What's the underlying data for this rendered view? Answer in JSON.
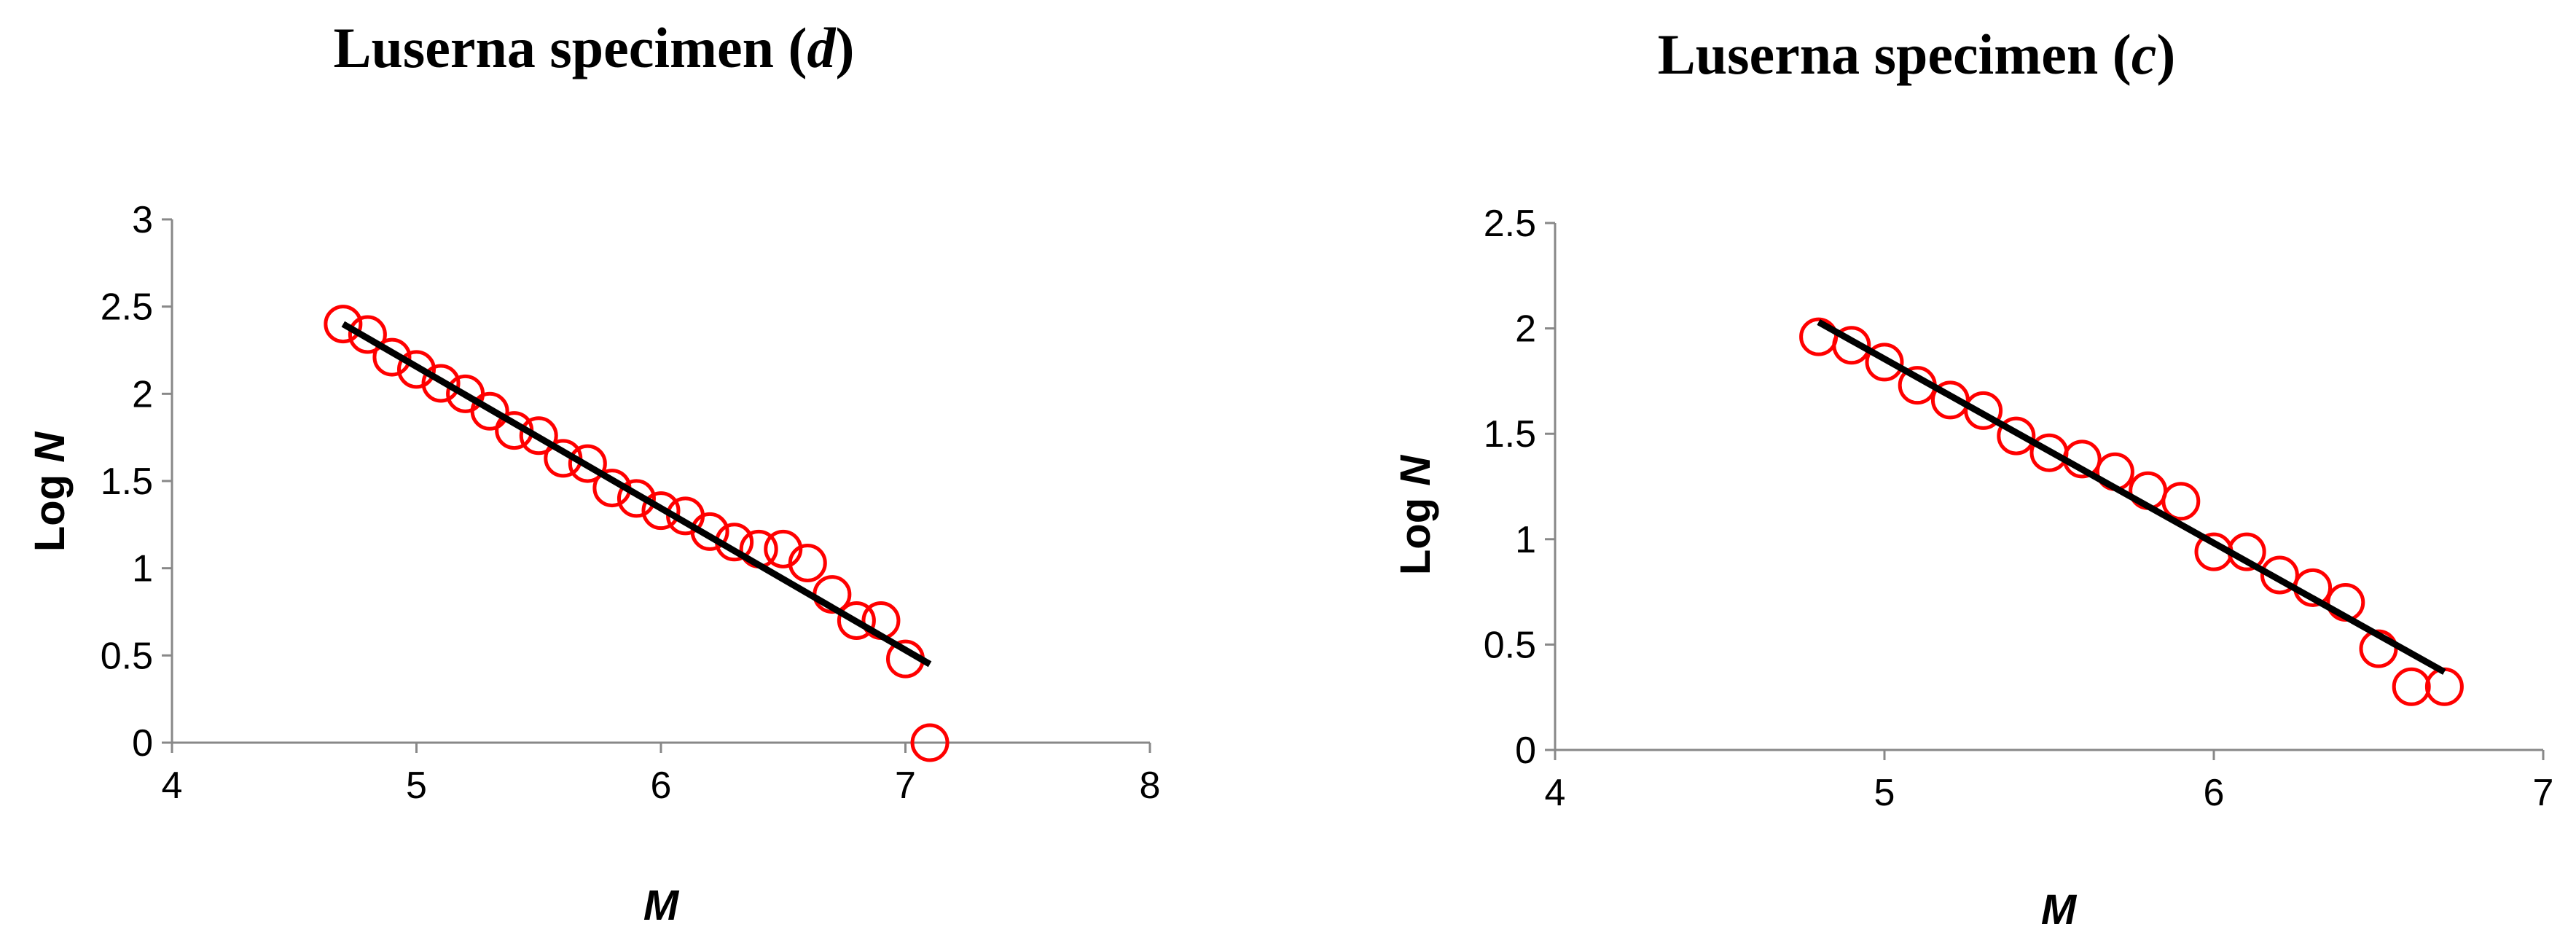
{
  "colors": {
    "points": "#ff0000",
    "fit_line": "#000000",
    "axis": "#888888"
  },
  "chart_data": [
    {
      "type": "scatter",
      "title": {
        "prefix": "Luserna specimen (",
        "italic": "d",
        "suffix": ")"
      },
      "xlabel": "M",
      "ylabel": {
        "prefix": "Log ",
        "italic": "N"
      },
      "xlim": [
        4,
        8
      ],
      "ylim": [
        0,
        3
      ],
      "xticks": [
        4,
        5,
        6,
        7,
        8
      ],
      "yticks": [
        0,
        0.5,
        1,
        1.5,
        2,
        2.5,
        3
      ],
      "grid": false,
      "legend": "none",
      "points": [
        [
          4.7,
          2.4
        ],
        [
          4.8,
          2.34
        ],
        [
          4.9,
          2.21
        ],
        [
          5.0,
          2.14
        ],
        [
          5.1,
          2.06
        ],
        [
          5.2,
          2.0
        ],
        [
          5.3,
          1.9
        ],
        [
          5.4,
          1.79
        ],
        [
          5.5,
          1.76
        ],
        [
          5.6,
          1.63
        ],
        [
          5.7,
          1.6
        ],
        [
          5.8,
          1.46
        ],
        [
          5.9,
          1.4
        ],
        [
          6.0,
          1.33
        ],
        [
          6.1,
          1.3
        ],
        [
          6.2,
          1.21
        ],
        [
          6.3,
          1.15
        ],
        [
          6.4,
          1.11
        ],
        [
          6.5,
          1.11
        ],
        [
          6.6,
          1.03
        ],
        [
          6.7,
          0.85
        ],
        [
          6.8,
          0.7
        ],
        [
          6.9,
          0.7
        ],
        [
          7.0,
          0.48
        ],
        [
          7.1,
          0.0
        ]
      ],
      "fit": [
        [
          4.7,
          2.4
        ],
        [
          7.1,
          0.45
        ]
      ]
    },
    {
      "type": "scatter",
      "title": {
        "prefix": "Luserna specimen (",
        "italic": "c",
        "suffix": ")"
      },
      "xlabel": "M",
      "ylabel": {
        "prefix": "Log ",
        "italic": "N"
      },
      "xlim": [
        4,
        7
      ],
      "ylim": [
        0,
        2.5
      ],
      "xticks": [
        4,
        5,
        6,
        7
      ],
      "yticks": [
        0,
        0.5,
        1,
        1.5,
        2,
        2.5
      ],
      "grid": false,
      "legend": "none",
      "points": [
        [
          4.8,
          1.96
        ],
        [
          4.9,
          1.92
        ],
        [
          5.0,
          1.84
        ],
        [
          5.1,
          1.73
        ],
        [
          5.2,
          1.66
        ],
        [
          5.3,
          1.61
        ],
        [
          5.4,
          1.49
        ],
        [
          5.5,
          1.41
        ],
        [
          5.6,
          1.38
        ],
        [
          5.7,
          1.32
        ],
        [
          5.8,
          1.23
        ],
        [
          5.9,
          1.18
        ],
        [
          6.0,
          0.94
        ],
        [
          6.1,
          0.94
        ],
        [
          6.2,
          0.83
        ],
        [
          6.3,
          0.77
        ],
        [
          6.4,
          0.7
        ],
        [
          6.5,
          0.48
        ],
        [
          6.6,
          0.3
        ],
        [
          6.7,
          0.3
        ]
      ],
      "fit": [
        [
          4.8,
          2.03
        ],
        [
          6.7,
          0.37
        ]
      ]
    }
  ]
}
